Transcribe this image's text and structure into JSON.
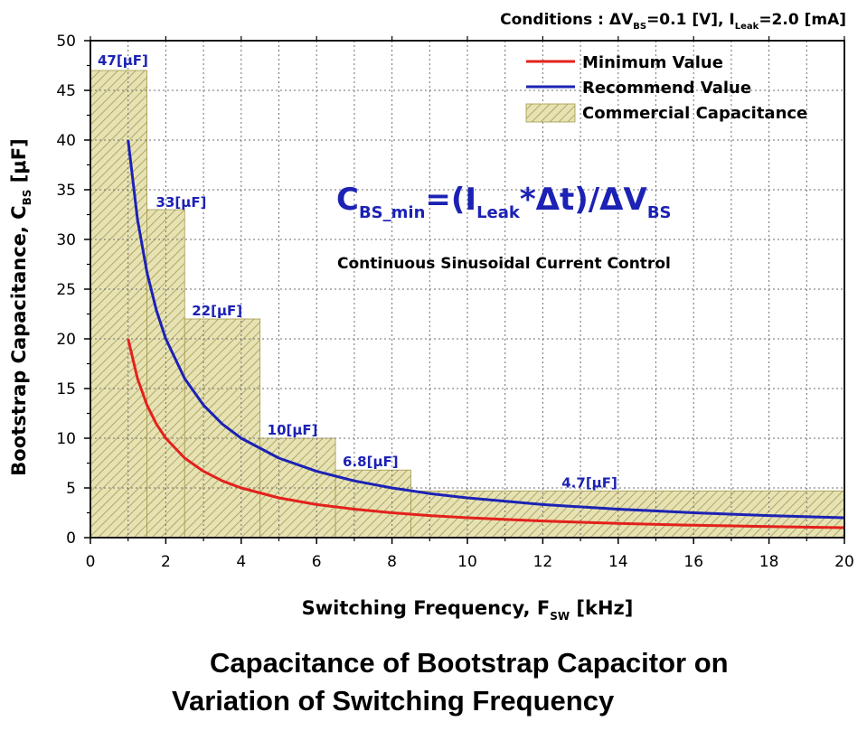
{
  "chart_data": {
    "type": "line",
    "conditions": {
      "prefix": "Conditions : ",
      "dv": "ΔV",
      "dv_sub": "BS",
      "dv_val": "=0.1 [V], I",
      "i_sub": "Leak",
      "i_val": "=2.0 [mA]"
    },
    "xlabel": {
      "main": "Switching Frequency, F",
      "sub": "SW",
      "unit": " [kHz]"
    },
    "ylabel": {
      "main": "Bootstrap Capacitance, C",
      "sub": "BS",
      "unit": " [μF]"
    },
    "xlim": [
      0,
      20
    ],
    "ylim": [
      0,
      50
    ],
    "x_ticks": [
      "0",
      "2",
      "4",
      "6",
      "8",
      "10",
      "12",
      "14",
      "16",
      "18",
      "20"
    ],
    "y_ticks": [
      "0",
      "5",
      "10",
      "15",
      "20",
      "25",
      "30",
      "35",
      "40",
      "45",
      "50"
    ],
    "grid": true,
    "legend_position": "top-right",
    "series": [
      {
        "name": "Minimum Value",
        "color": "#e3211c",
        "x": [
          1,
          1.25,
          1.5,
          1.75,
          2,
          2.5,
          3,
          3.5,
          4,
          5,
          6,
          7,
          8,
          9,
          10,
          12,
          14,
          16,
          18,
          20
        ],
        "y": [
          20,
          16,
          13.33,
          11.43,
          10,
          8,
          6.67,
          5.71,
          5,
          4,
          3.33,
          2.86,
          2.5,
          2.22,
          2,
          1.67,
          1.43,
          1.25,
          1.11,
          1
        ]
      },
      {
        "name": "Recommend Value",
        "color": "#1c22b4",
        "x": [
          1,
          1.25,
          1.5,
          1.75,
          2,
          2.5,
          3,
          3.5,
          4,
          5,
          6,
          7,
          8,
          9,
          10,
          12,
          14,
          16,
          18,
          20
        ],
        "y": [
          40,
          32,
          26.67,
          22.86,
          20,
          16,
          13.33,
          11.43,
          10,
          8,
          6.67,
          5.71,
          5,
          4.44,
          4,
          3.33,
          2.86,
          2.5,
          2.22,
          2
        ]
      }
    ],
    "commercial_capacitance": {
      "name": "Commercial Capacitance",
      "fill": "#e6e2b4",
      "hatch": "#a49a4c",
      "steps": [
        {
          "x0": 0,
          "x1": 1.5,
          "value": 47,
          "label": "47[μF]"
        },
        {
          "x0": 1.5,
          "x1": 2.5,
          "value": 33,
          "label": "33[μF]"
        },
        {
          "x0": 2.5,
          "x1": 4.5,
          "value": 22,
          "label": "22[μF]"
        },
        {
          "x0": 4.5,
          "x1": 6.5,
          "value": 10,
          "label": "10[μF]"
        },
        {
          "x0": 6.5,
          "x1": 8.5,
          "value": 6.8,
          "label": "6.8[μF]"
        },
        {
          "x0": 8.5,
          "x1": 20,
          "value": 4.7,
          "label": "4.7[μF]"
        }
      ]
    },
    "formula": {
      "c": "C",
      "c_sub": "BS_min",
      "mid": "=(I",
      "i_sub": "Leak",
      "tail": "*Δt)/ΔV",
      "v_sub": "BS"
    },
    "annotation": "Continuous Sinusoidal Current Control"
  },
  "caption": {
    "line1": "Capacitance of Bootstrap Capacitor on",
    "line2": "Variation of Switching Frequency"
  },
  "colors": {
    "label_blue": "#1c22b4",
    "axis": "#000000",
    "grid": "#6e6e6e"
  }
}
